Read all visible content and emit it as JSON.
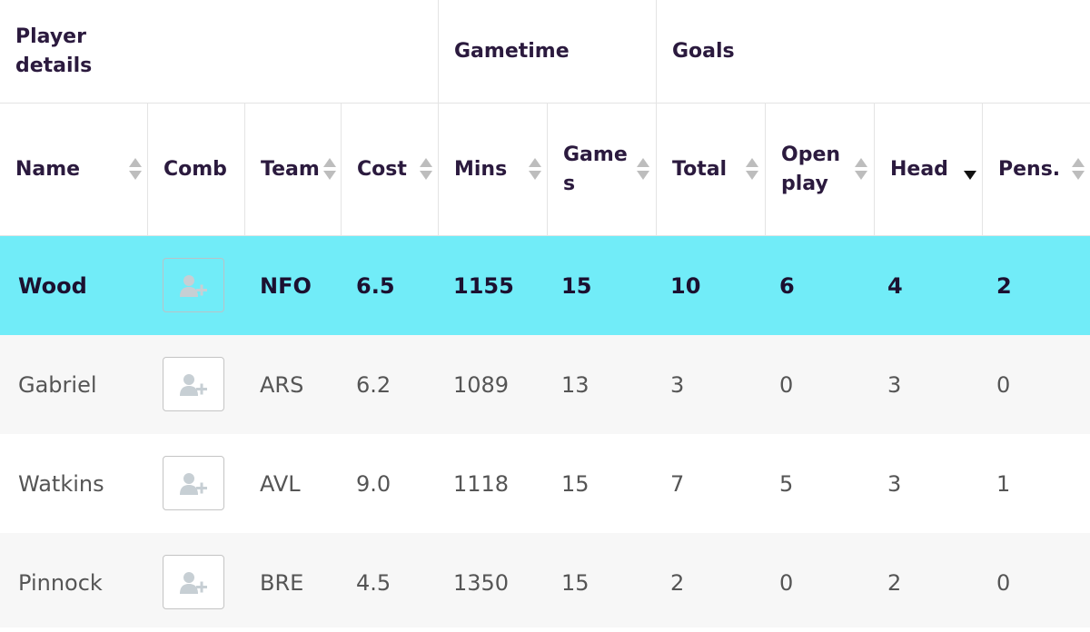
{
  "group_headers": [
    {
      "id": "player",
      "label_line1": "Player",
      "label_line2": "details"
    },
    {
      "id": "gametime",
      "label": "Gametime"
    },
    {
      "id": "goals",
      "label": "Goals"
    }
  ],
  "columns": [
    {
      "id": "name",
      "line1": "Name",
      "line2": "",
      "sortable": true
    },
    {
      "id": "comb",
      "line1": "Comb",
      "line2": "",
      "sortable": false
    },
    {
      "id": "team",
      "line1": "Team",
      "line2": "",
      "sortable": true
    },
    {
      "id": "cost",
      "line1": "Cost",
      "line2": "",
      "sortable": true
    },
    {
      "id": "mins",
      "line1": "Mins",
      "line2": "",
      "sortable": true
    },
    {
      "id": "games",
      "line1": "Game",
      "line2": "s",
      "sortable": true
    },
    {
      "id": "total",
      "line1": "Total",
      "line2": "",
      "sortable": true
    },
    {
      "id": "openplay",
      "line1": "Open",
      "line2": "play",
      "sortable": true
    },
    {
      "id": "head",
      "line1": "Head",
      "line2": "",
      "sortable": true,
      "active_sort": "descending"
    },
    {
      "id": "pens",
      "line1": "Pens.",
      "line2": "",
      "sortable": true
    }
  ],
  "rows": [
    {
      "name": "Wood",
      "team": "NFO",
      "cost": "6.5",
      "mins": "1155",
      "games": "15",
      "total": "10",
      "openplay": "6",
      "head": "4",
      "pens": "2",
      "highlighted": true
    },
    {
      "name": "Gabriel",
      "team": "ARS",
      "cost": "6.2",
      "mins": "1089",
      "games": "13",
      "total": "3",
      "openplay": "0",
      "head": "3",
      "pens": "0",
      "highlighted": false
    },
    {
      "name": "Watkins",
      "team": "AVL",
      "cost": "9.0",
      "mins": "1118",
      "games": "15",
      "total": "7",
      "openplay": "5",
      "head": "3",
      "pens": "1",
      "highlighted": false
    },
    {
      "name": "Pinnock",
      "team": "BRE",
      "cost": "4.5",
      "mins": "1350",
      "games": "15",
      "total": "2",
      "openplay": "0",
      "head": "2",
      "pens": "0",
      "highlighted": false
    }
  ],
  "icons": {
    "comb_button": "add-user-icon",
    "sort": "sort-arrows-icon"
  },
  "colors": {
    "highlight_row": "#71ecf8",
    "alt_row": "#f7f7f7",
    "header_text": "#2b1a3e",
    "body_text": "#555555"
  }
}
